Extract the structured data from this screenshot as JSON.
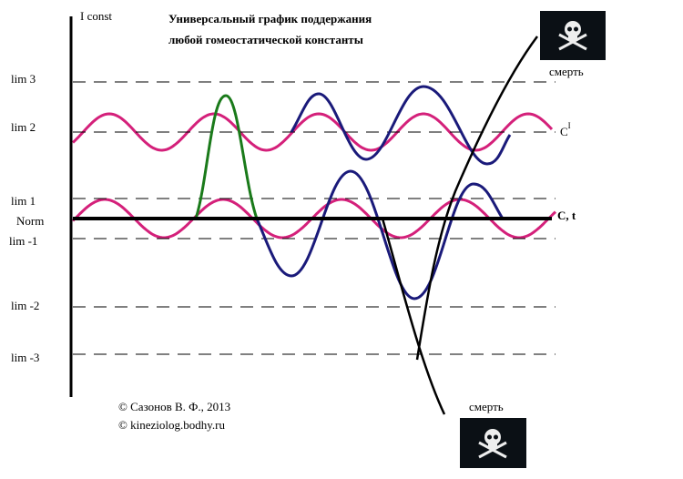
{
  "title": {
    "line1": "Универсальный график поддержания",
    "line2": "любой гомеостатической константы"
  },
  "axis_label": "I const",
  "levels": [
    "lim 3",
    "lim 2",
    "lim 1",
    "Norm",
    "lim -1",
    "lim -2",
    "lim -3"
  ],
  "right_labels": {
    "c_prime": "C",
    "c_prime_sup": "I",
    "c_t": "C, t"
  },
  "death_labels": {
    "top": "смерть",
    "bottom": "смерть"
  },
  "credits": [
    "©  Сазонов В. Ф., 2013",
    "©  kineziolog.bodhy.ru"
  ]
}
